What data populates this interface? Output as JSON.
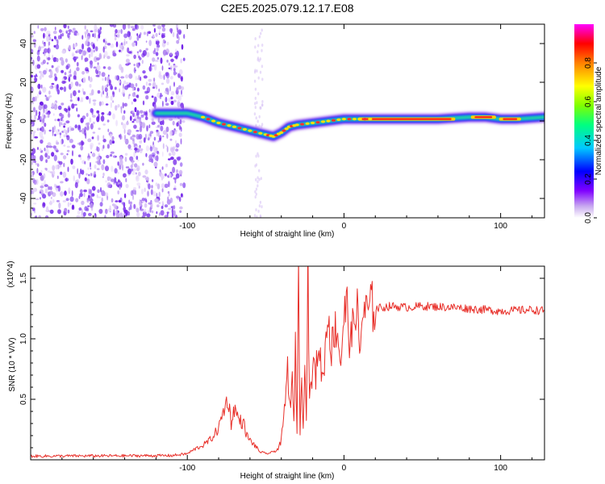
{
  "figure_title": "C2E5.2025.079.12.17.E08",
  "chart_data": [
    {
      "type": "heatmap",
      "title": "C2E5.2025.079.12.17.E08",
      "xlabel": "Height of straight line (km)",
      "ylabel": "Frequency (Hz)",
      "xlim": [
        -200,
        128
      ],
      "ylim": [
        -50,
        50
      ],
      "x_ticks": [
        -100,
        0,
        100
      ],
      "y_ticks": [
        -40,
        -20,
        0,
        20,
        40
      ],
      "colorbar": {
        "label": "Normalized spectral amplitude",
        "range": [
          0,
          1
        ],
        "ticks": [
          0.0,
          0.2,
          0.4,
          0.6,
          0.8
        ],
        "colors": [
          "#ffffff",
          "#c8a8f0",
          "#8000ff",
          "#0000ff",
          "#00c8ff",
          "#00ff80",
          "#80ff00",
          "#ffff00",
          "#ff8000",
          "#ff0000",
          "#ff00ff"
        ]
      },
      "ridge": {
        "x": [
          -120,
          -100,
          -90,
          -80,
          -70,
          -60,
          -50,
          -45,
          -40,
          -35,
          -30,
          -20,
          -10,
          0,
          10,
          20,
          40,
          60,
          80,
          90,
          100,
          110,
          128
        ],
        "y": [
          4,
          4,
          2,
          -1,
          -3,
          -5,
          -7,
          -8,
          -6,
          -3,
          -2,
          -1,
          0,
          1,
          1,
          1,
          1,
          1,
          2,
          2,
          1,
          1,
          2
        ]
      },
      "noise_region_x": [
        -200,
        -102
      ]
    },
    {
      "type": "line",
      "xlabel": "Height of straight line (km)",
      "ylabel": "SNR (10 * V/V)",
      "y_multiplier": "(x10^4)",
      "xlim": [
        -200,
        128
      ],
      "ylim": [
        0,
        16000
      ],
      "x_ticks": [
        -100,
        0,
        100
      ],
      "y_ticks": [
        0.5,
        1.0,
        1.5
      ],
      "series": [
        {
          "color": "#e8302a",
          "x": [
            -200,
            -110,
            -100,
            -95,
            -90,
            -85,
            -80,
            -77,
            -74,
            -72,
            -70,
            -67,
            -64,
            -62,
            -60,
            -57,
            -54,
            -50,
            -46,
            -42,
            -40,
            -38,
            -36,
            -34,
            -33,
            -32,
            -31,
            -30,
            -29,
            -28,
            -27,
            -26,
            -25,
            -24,
            -23,
            -22,
            -21,
            -20,
            -18,
            -16,
            -14,
            -12,
            -10,
            -8,
            -6,
            -4,
            -2,
            0,
            2,
            4,
            6,
            8,
            10,
            12,
            14,
            16,
            18,
            20,
            25,
            30,
            40,
            50,
            60,
            70,
            80,
            90,
            100,
            110,
            120,
            128
          ],
          "y": [
            300,
            350,
            500,
            900,
            1200,
            1700,
            2600,
            4000,
            5100,
            3000,
            4300,
            3300,
            3000,
            2000,
            1600,
            1200,
            700,
            500,
            600,
            900,
            1600,
            4000,
            7500,
            4000,
            6500,
            3000,
            9000,
            2500,
            16000,
            2000,
            7000,
            3000,
            9500,
            3000,
            16500,
            6000,
            5500,
            8000,
            7000,
            10000,
            6500,
            9000,
            12500,
            9000,
            11000,
            10500,
            8000,
            12000,
            12500,
            9500,
            11000,
            13500,
            8500,
            12500,
            12000,
            12500,
            12600,
            12500,
            12600,
            12700,
            12600,
            12700,
            12650,
            12600,
            12500,
            12400,
            12300,
            12350,
            12400,
            12300
          ]
        }
      ]
    }
  ]
}
